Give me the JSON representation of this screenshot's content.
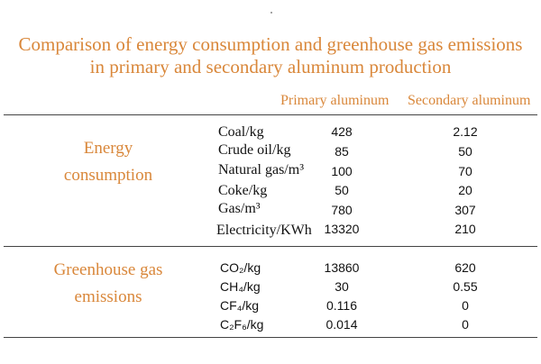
{
  "title": {
    "line1": "Comparison of energy consumption and greenhouse gas emissions",
    "line2": "in primary and secondary aluminum production"
  },
  "columns": {
    "primary": "Primary aluminum",
    "secondary": "Secondary aluminum"
  },
  "groups": {
    "energy": {
      "label_line1": "Energy",
      "label_line2": "consumption",
      "rows": [
        {
          "item": "Coal/kg",
          "primary": "428",
          "secondary": "2.12"
        },
        {
          "item": "Crude oil/kg",
          "primary": "85",
          "secondary": "50"
        },
        {
          "item": "Natural gas/m³",
          "primary": "100",
          "secondary": "70"
        },
        {
          "item": "Coke/kg",
          "primary": "50",
          "secondary": "20"
        },
        {
          "item": "Gas/m³",
          "primary": "780",
          "secondary": "307"
        },
        {
          "item": "Electricity/KWh",
          "primary": "13320",
          "secondary": "210"
        }
      ]
    },
    "ghg": {
      "label_line1": "Greenhouse gas",
      "label_line2": "emissions",
      "rows": [
        {
          "item": "CO₂/kg",
          "primary": "13860",
          "secondary": "620"
        },
        {
          "item": "CH₄/kg",
          "primary": "30",
          "secondary": "0.55"
        },
        {
          "item": "CF₄/kg",
          "primary": "0.116",
          "secondary": "0"
        },
        {
          "item": "C₂F₆/kg",
          "primary": "0.014",
          "secondary": "0"
        }
      ]
    }
  }
}
